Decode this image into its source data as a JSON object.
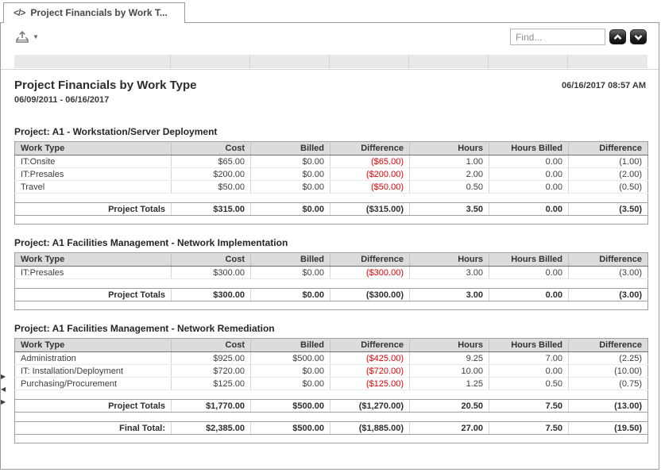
{
  "tab": {
    "title": "Project Financials by Work T...",
    "icon_glyph": "</>"
  },
  "toolbar": {
    "find_placeholder": "Find...",
    "export_caret_glyph": "▼"
  },
  "icons": {
    "tab_icon": "code-icon",
    "export_icon": "export-icon",
    "caret": "caret-down-icon",
    "find_prev": "chevron-up-icon",
    "find_next": "chevron-down-icon",
    "gutter": [
      "▶",
      "◀",
      "▶"
    ]
  },
  "colors": {
    "negative_value": "#e60000",
    "header_row_bg": "#dcdcdc",
    "strip_bg": "#e9e9e9"
  },
  "report": {
    "title": "Project Financials by Work Type",
    "date_range": "06/09/2011 - 06/16/2017",
    "generated": "06/16/2017 08:57 AM",
    "columns": [
      "Work Type",
      "Cost",
      "Billed",
      "Difference",
      "Hours",
      "Hours Billed",
      "Difference"
    ],
    "projects": [
      {
        "name": "Project: A1 - Workstation/Server Deployment",
        "rows": [
          [
            "IT:Onsite",
            "$65.00",
            "$0.00",
            "($65.00)",
            "1.00",
            "0.00",
            "(1.00)"
          ],
          [
            "IT:Presales",
            "$200.00",
            "$0.00",
            "($200.00)",
            "2.00",
            "0.00",
            "(2.00)"
          ],
          [
            "Travel",
            "$50.00",
            "$0.00",
            "($50.00)",
            "0.50",
            "0.00",
            "(0.50)"
          ]
        ],
        "totals": [
          "Project Totals",
          "$315.00",
          "$0.00",
          "($315.00)",
          "3.50",
          "0.00",
          "(3.50)"
        ]
      },
      {
        "name": "Project: A1 Facilities Management - Network Implementation",
        "rows": [
          [
            "IT:Presales",
            "$300.00",
            "$0.00",
            "($300.00)",
            "3.00",
            "0.00",
            "(3.00)"
          ]
        ],
        "totals": [
          "Project Totals",
          "$300.00",
          "$0.00",
          "($300.00)",
          "3.00",
          "0.00",
          "(3.00)"
        ]
      },
      {
        "name": "Project: A1 Facilities Management - Network Remediation",
        "rows": [
          [
            "Administration",
            "$925.00",
            "$500.00",
            "($425.00)",
            "9.25",
            "7.00",
            "(2.25)"
          ],
          [
            "IT: Installation/Deployment",
            "$720.00",
            "$0.00",
            "($720.00)",
            "10.00",
            "0.00",
            "(10.00)"
          ],
          [
            "Purchasing/Procurement",
            "$125.00",
            "$0.00",
            "($125.00)",
            "1.25",
            "0.50",
            "(0.75)"
          ]
        ],
        "totals": [
          "Project Totals",
          "$1,770.00",
          "$500.00",
          "($1,270.00)",
          "20.50",
          "7.50",
          "(13.00)"
        ]
      }
    ],
    "final_total": [
      "Final Total:",
      "$2,385.00",
      "$500.00",
      "($1,885.00)",
      "27.00",
      "7.50",
      "(19.50)"
    ]
  }
}
